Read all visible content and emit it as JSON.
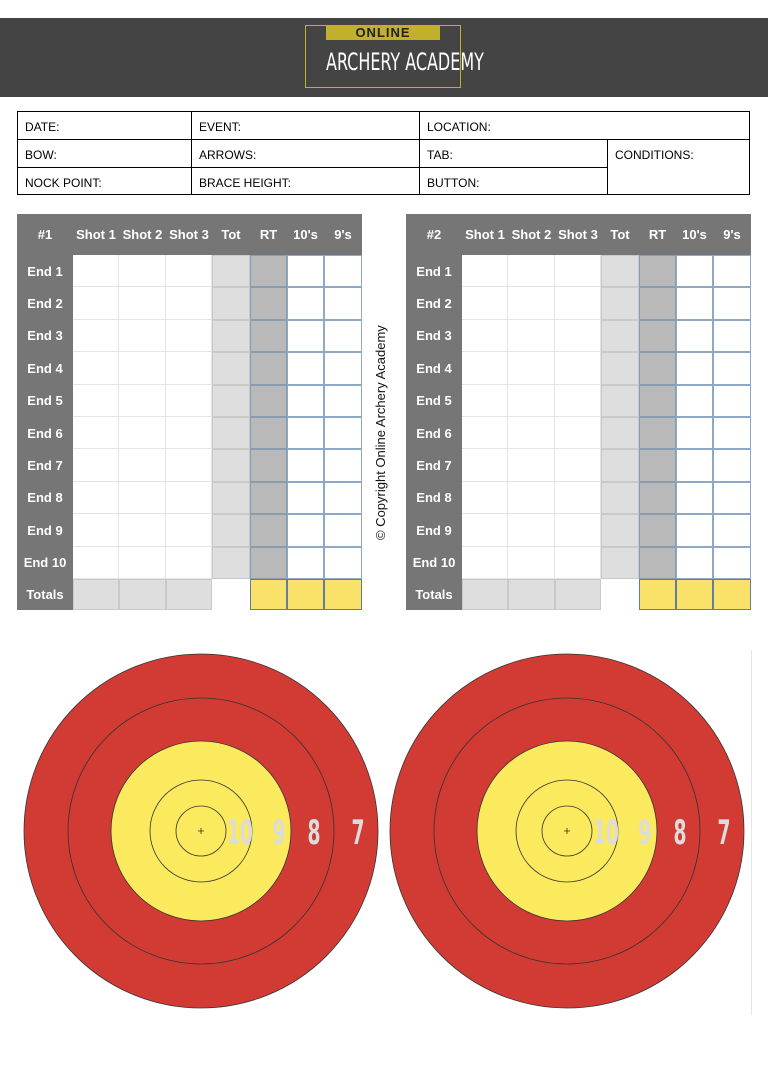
{
  "logo": {
    "top_text": "ONLINE",
    "main_text": "ARCHERY ACADEMY"
  },
  "info": {
    "date": "DATE:",
    "event": "EVENT:",
    "location": "LOCATION:",
    "bow": "BOW:",
    "arrows": "ARROWS:",
    "tab": "TAB:",
    "conditions": "CONDITIONS:",
    "nock_point": "NOCK POINT:",
    "brace_height": "BRACE HEIGHT:",
    "button": "BUTTON:"
  },
  "scorecards": [
    {
      "title": "#1",
      "columns": [
        "Shot 1",
        "Shot 2",
        "Shot 3",
        "Tot",
        "RT",
        "10's",
        "9's"
      ],
      "rows": [
        "End 1",
        "End 2",
        "End 3",
        "End 4",
        "End 5",
        "End 6",
        "End 7",
        "End 8",
        "End 9",
        "End 10"
      ],
      "totals_label": "Totals"
    },
    {
      "title": "#2",
      "columns": [
        "Shot 1",
        "Shot 2",
        "Shot 3",
        "Tot",
        "RT",
        "10's",
        "9's"
      ],
      "rows": [
        "End 1",
        "End 2",
        "End 3",
        "End 4",
        "End 5",
        "End 6",
        "End 7",
        "End 8",
        "End 9",
        "End 10"
      ],
      "totals_label": "Totals"
    }
  ],
  "copyright": "© Copyright Online Archery Academy",
  "target": {
    "ring_labels": [
      "10",
      "9",
      "8",
      "7"
    ],
    "colors": {
      "red": "#d23b33",
      "yellow": "#fbe95e",
      "label": "#dcdcdc"
    }
  }
}
